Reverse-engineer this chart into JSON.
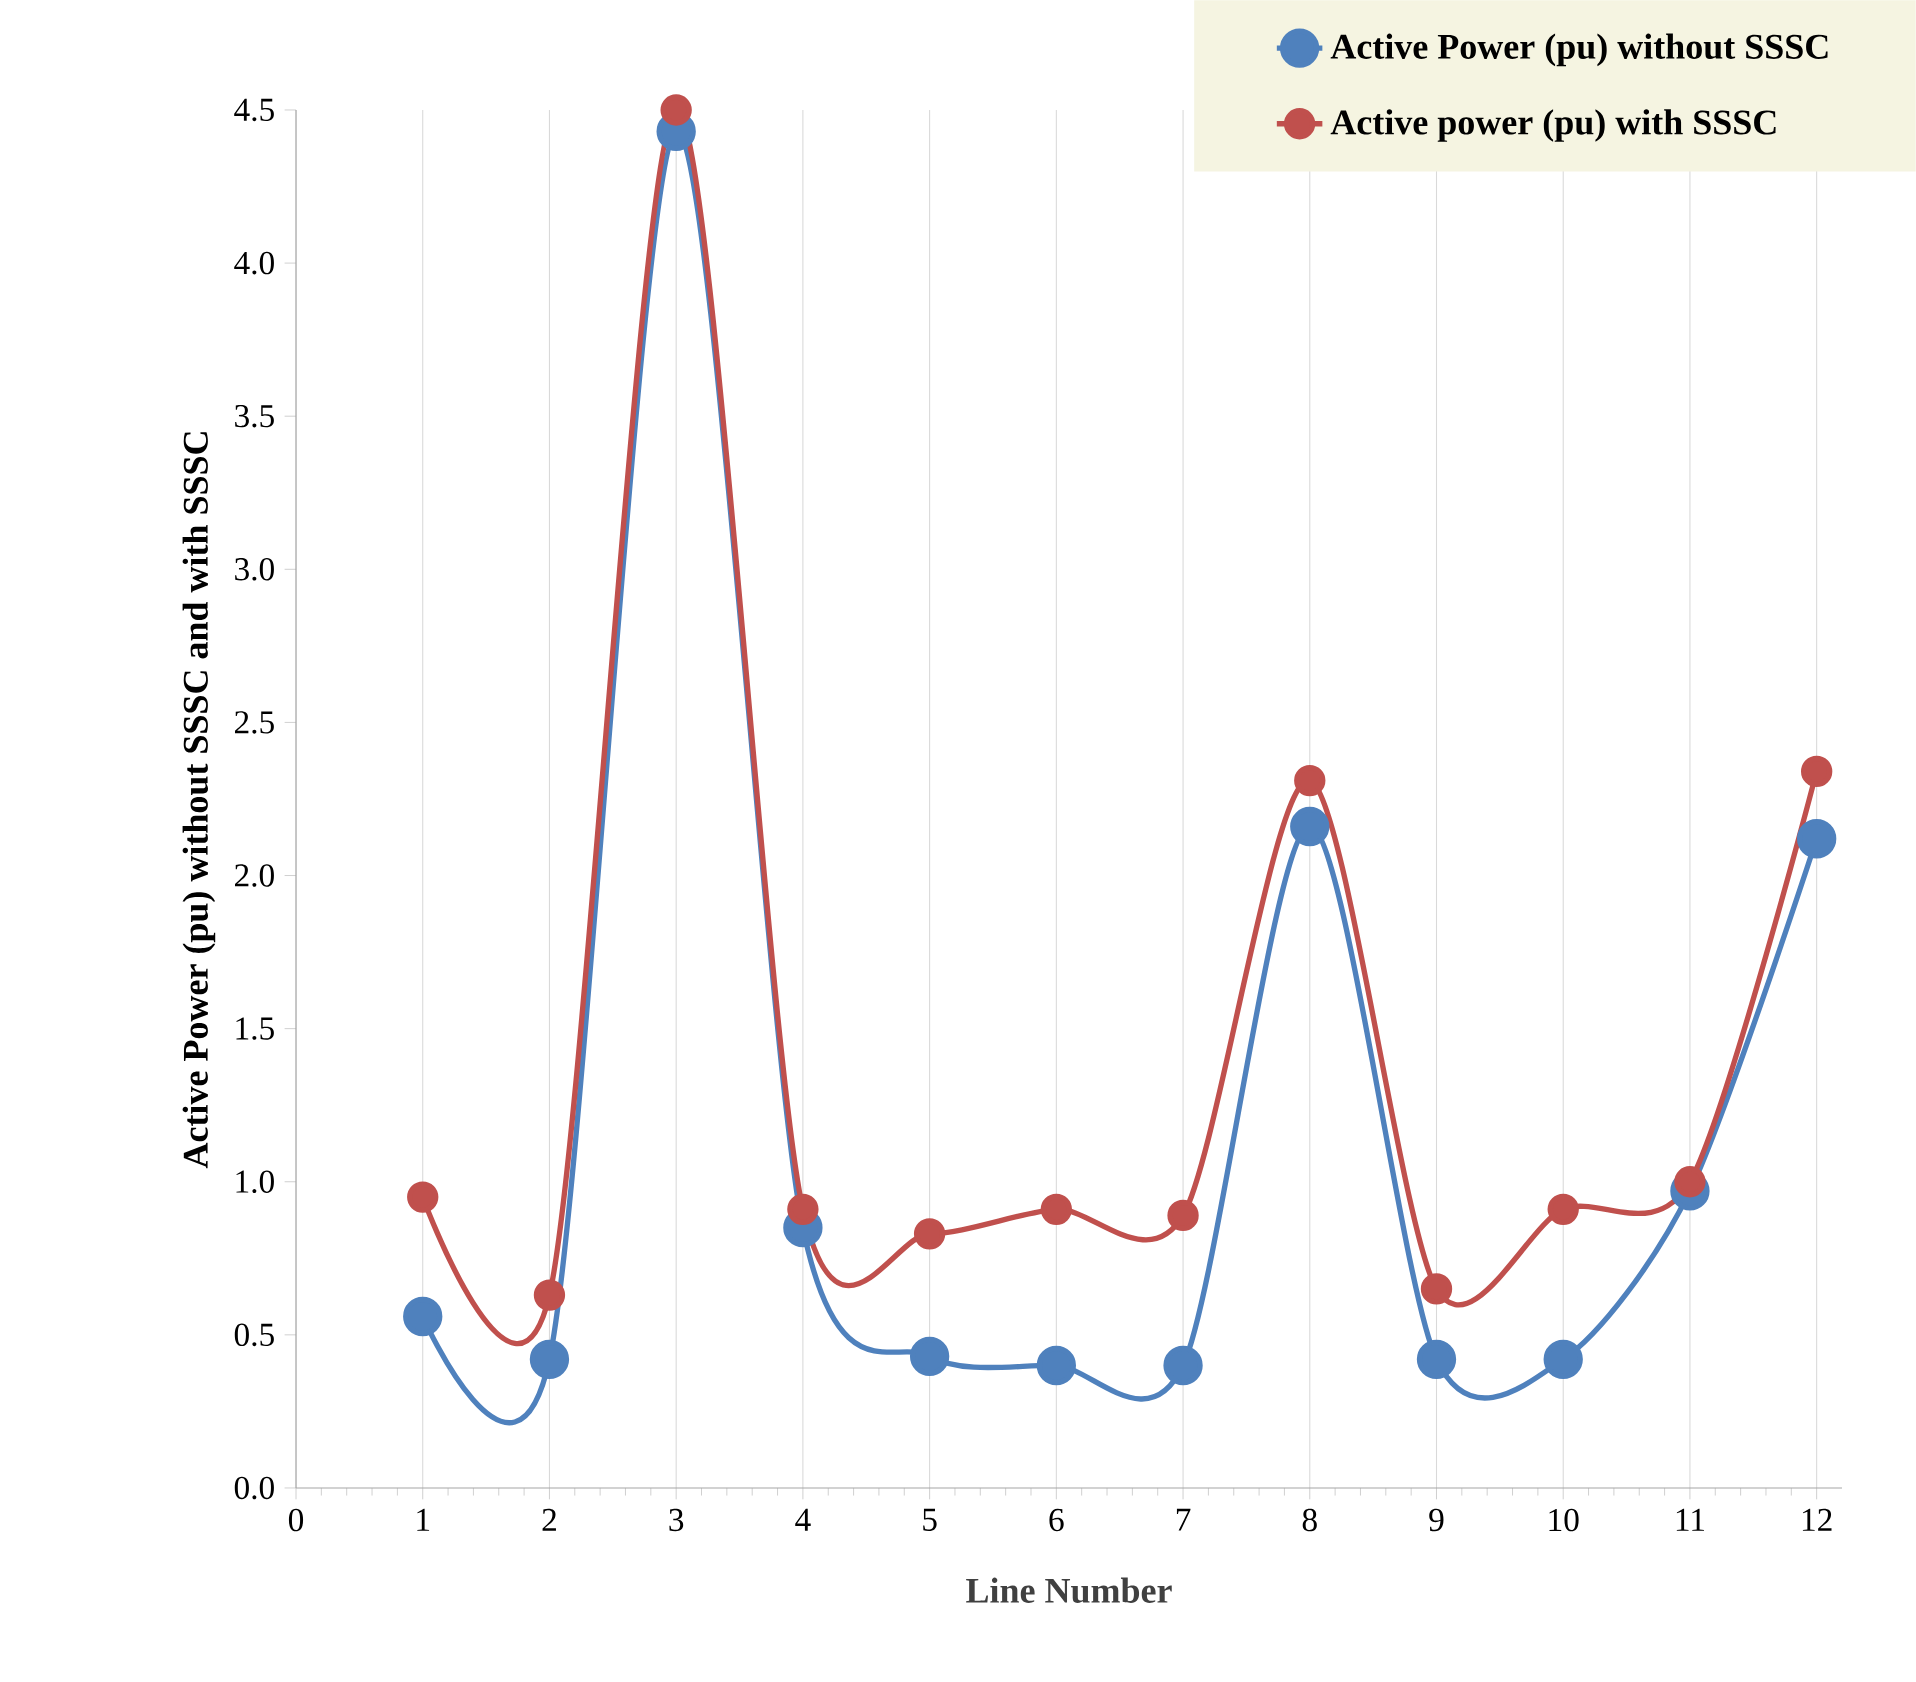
{
  "chart_data": {
    "type": "line",
    "xlabel": "Line Number",
    "ylabel": "Active Power (pu) without SSSC and with SSSC",
    "x": [
      1,
      2,
      3,
      4,
      5,
      6,
      7,
      8,
      9,
      10,
      11,
      12
    ],
    "series": [
      {
        "name": "Active Power (pu) without SSSC",
        "color": "#4f81bd",
        "values": [
          0.56,
          0.42,
          4.43,
          0.85,
          0.43,
          0.4,
          0.4,
          2.16,
          0.42,
          0.42,
          0.97,
          2.12
        ]
      },
      {
        "name": "Active power (pu) with SSSC",
        "color": "#c0504d",
        "values": [
          0.95,
          0.63,
          4.5,
          0.91,
          0.83,
          0.91,
          0.89,
          2.31,
          0.65,
          0.91,
          1.0,
          2.34
        ]
      }
    ],
    "xlim": [
      0,
      12.2
    ],
    "ylim": [
      0,
      4.5
    ],
    "xticks": [
      0,
      1,
      2,
      3,
      4,
      5,
      6,
      7,
      8,
      9,
      10,
      11,
      12
    ],
    "yticks": [
      {
        "value": 0,
        "label": "0.0"
      },
      {
        "value": 0.5,
        "label": "0.5"
      },
      {
        "value": 1,
        "label": "1.0"
      },
      {
        "value": 1.5,
        "label": "1.5"
      },
      {
        "value": 2,
        "label": "2.0"
      },
      {
        "value": 2.5,
        "label": "2.5"
      },
      {
        "value": 3,
        "label": "3.0"
      },
      {
        "value": 3.5,
        "label": "3.5"
      },
      {
        "value": 4,
        "label": "4.0"
      },
      {
        "value": 4.5,
        "label": "4.5"
      }
    ],
    "grid": "x",
    "legend": "top right",
    "marker": "circle"
  }
}
